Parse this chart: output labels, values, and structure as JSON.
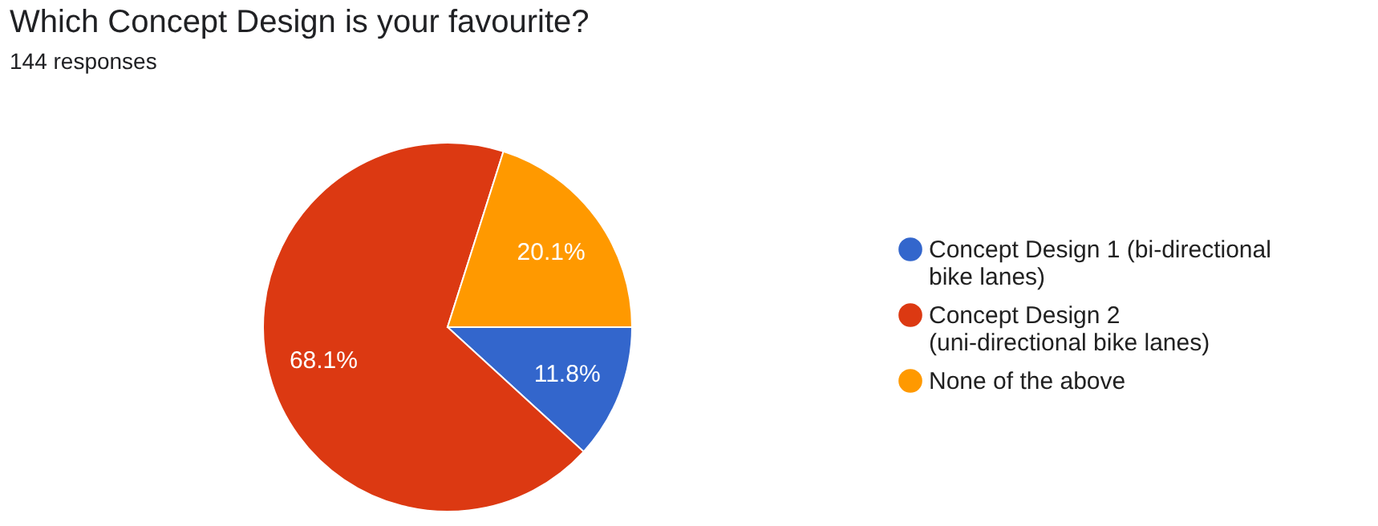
{
  "chart_data": {
    "type": "pie",
    "title": "Which Concept Design is your favourite?",
    "subtitle": "144 responses",
    "categories": [
      "Concept Design 1 (bi-directional bike lanes)",
      "Concept Design 2 (uni-directional bike lanes)",
      "None of the above"
    ],
    "values": [
      11.8,
      68.1,
      20.1
    ],
    "colors": [
      "#3366cc",
      "#dc3912",
      "#ff9900"
    ],
    "value_labels": [
      "11.8%",
      "68.1%",
      "20.1%"
    ],
    "legend": "right"
  }
}
